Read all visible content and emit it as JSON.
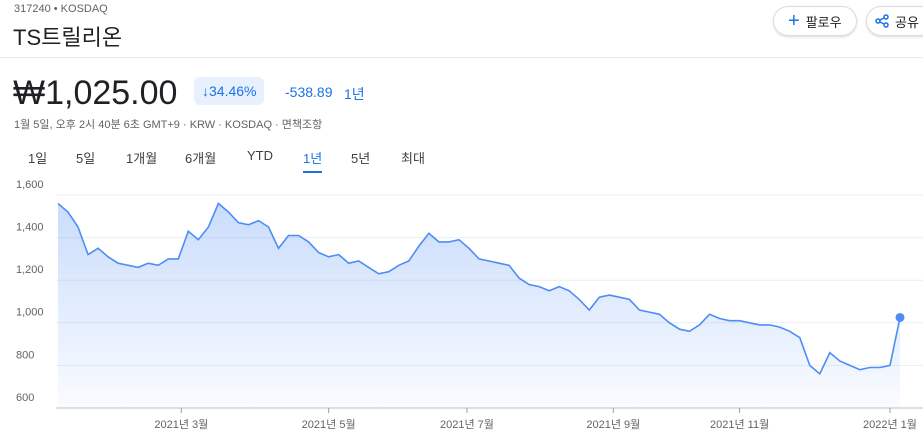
{
  "header": {
    "ticker": "317240 • KOSDAQ",
    "name": "TS트릴리온",
    "price": "₩1,025.00",
    "change_pct": "34.46%",
    "change_abs": "-538.89",
    "change_period": "1년",
    "meta": "1월 5일, 오후 2시 40분 6초 GMT+9 · KRW · KOSDAQ · 면책조항",
    "follow": "팔로우",
    "share": "공유"
  },
  "tabs": {
    "items": [
      "1일",
      "5일",
      "1개월",
      "6개월",
      "YTD",
      "1년",
      "5년",
      "최대"
    ],
    "selected": 5
  },
  "chart_data": {
    "type": "line",
    "color": "#4e8df5",
    "grid": true,
    "values": [
      1560,
      1520,
      1450,
      1320,
      1350,
      1310,
      1280,
      1270,
      1260,
      1280,
      1270,
      1300,
      1300,
      1430,
      1390,
      1450,
      1560,
      1520,
      1470,
      1460,
      1480,
      1450,
      1350,
      1410,
      1410,
      1380,
      1330,
      1310,
      1320,
      1280,
      1290,
      1260,
      1230,
      1240,
      1270,
      1290,
      1360,
      1420,
      1380,
      1380,
      1390,
      1350,
      1300,
      1290,
      1280,
      1270,
      1210,
      1180,
      1170,
      1150,
      1170,
      1150,
      1110,
      1060,
      1120,
      1130,
      1120,
      1110,
      1060,
      1050,
      1040,
      1000,
      970,
      960,
      990,
      1040,
      1020,
      1010,
      1010,
      1000,
      990,
      990,
      980,
      960,
      930,
      800,
      760,
      860,
      820,
      800,
      780,
      790,
      790,
      800,
      1025
    ],
    "xlim": [
      0,
      84
    ],
    "xticks": [
      {
        "value": 12.3,
        "label": "2021년 3월"
      },
      {
        "value": 27,
        "label": "2021년 5월"
      },
      {
        "value": 40.8,
        "label": "2021년 7월"
      },
      {
        "value": 55.4,
        "label": "2021년 9월"
      },
      {
        "value": 68,
        "label": "2021년 11월"
      },
      {
        "value": 83,
        "label": "2022년 1월"
      }
    ],
    "ylim": [
      600,
      1600
    ],
    "yticks": [
      {
        "value": 600,
        "label": "600"
      },
      {
        "value": 800,
        "label": "800"
      },
      {
        "value": 1000,
        "label": "1,000"
      },
      {
        "value": 1200,
        "label": "1,200"
      },
      {
        "value": 1400,
        "label": "1,400"
      },
      {
        "value": 1600,
        "label": "1,600"
      }
    ]
  }
}
